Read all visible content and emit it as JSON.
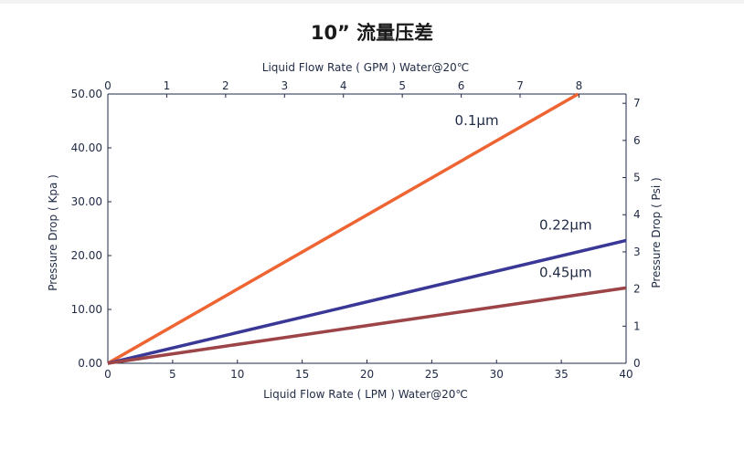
{
  "chart_data": {
    "type": "line",
    "title": "10” 流量压差",
    "xlabel": "Liquid Flow Rate ( LPM ) Water@20℃",
    "x2label": "Liquid Flow Rate ( GPM ) Water@20℃",
    "ylabel": "Pressure Drop ( Kpa )",
    "y2label": "Pressure Drop ( Psi )",
    "xlim": [
      0,
      40
    ],
    "ylim": [
      0,
      50
    ],
    "x2lim": [
      0,
      8.8
    ],
    "y2lim": [
      0,
      7.25
    ],
    "x_ticks": [
      "0",
      "5",
      "10",
      "15",
      "20",
      "25",
      "30",
      "35",
      "40"
    ],
    "y_ticks": [
      "0.00",
      "10.00",
      "20.00",
      "30.00",
      "40.00",
      "50.00"
    ],
    "x2_ticks": [
      "0",
      "1",
      "2",
      "3",
      "4",
      "5",
      "6",
      "7",
      "8"
    ],
    "y2_ticks": [
      "0",
      "1",
      "2",
      "3",
      "4",
      "5",
      "6",
      "7"
    ],
    "grid": false,
    "series": [
      {
        "name": "0.1μm",
        "color": "#ee6432",
        "x": [
          0,
          36.3
        ],
        "y": [
          0,
          50
        ]
      },
      {
        "name": "0.22μm",
        "color": "#3a3896",
        "x": [
          0,
          40
        ],
        "y": [
          0,
          22.8
        ]
      },
      {
        "name": "0.45μm",
        "color": "#9c4448",
        "x": [
          0,
          40
        ],
        "y": [
          0,
          14
        ]
      }
    ]
  }
}
